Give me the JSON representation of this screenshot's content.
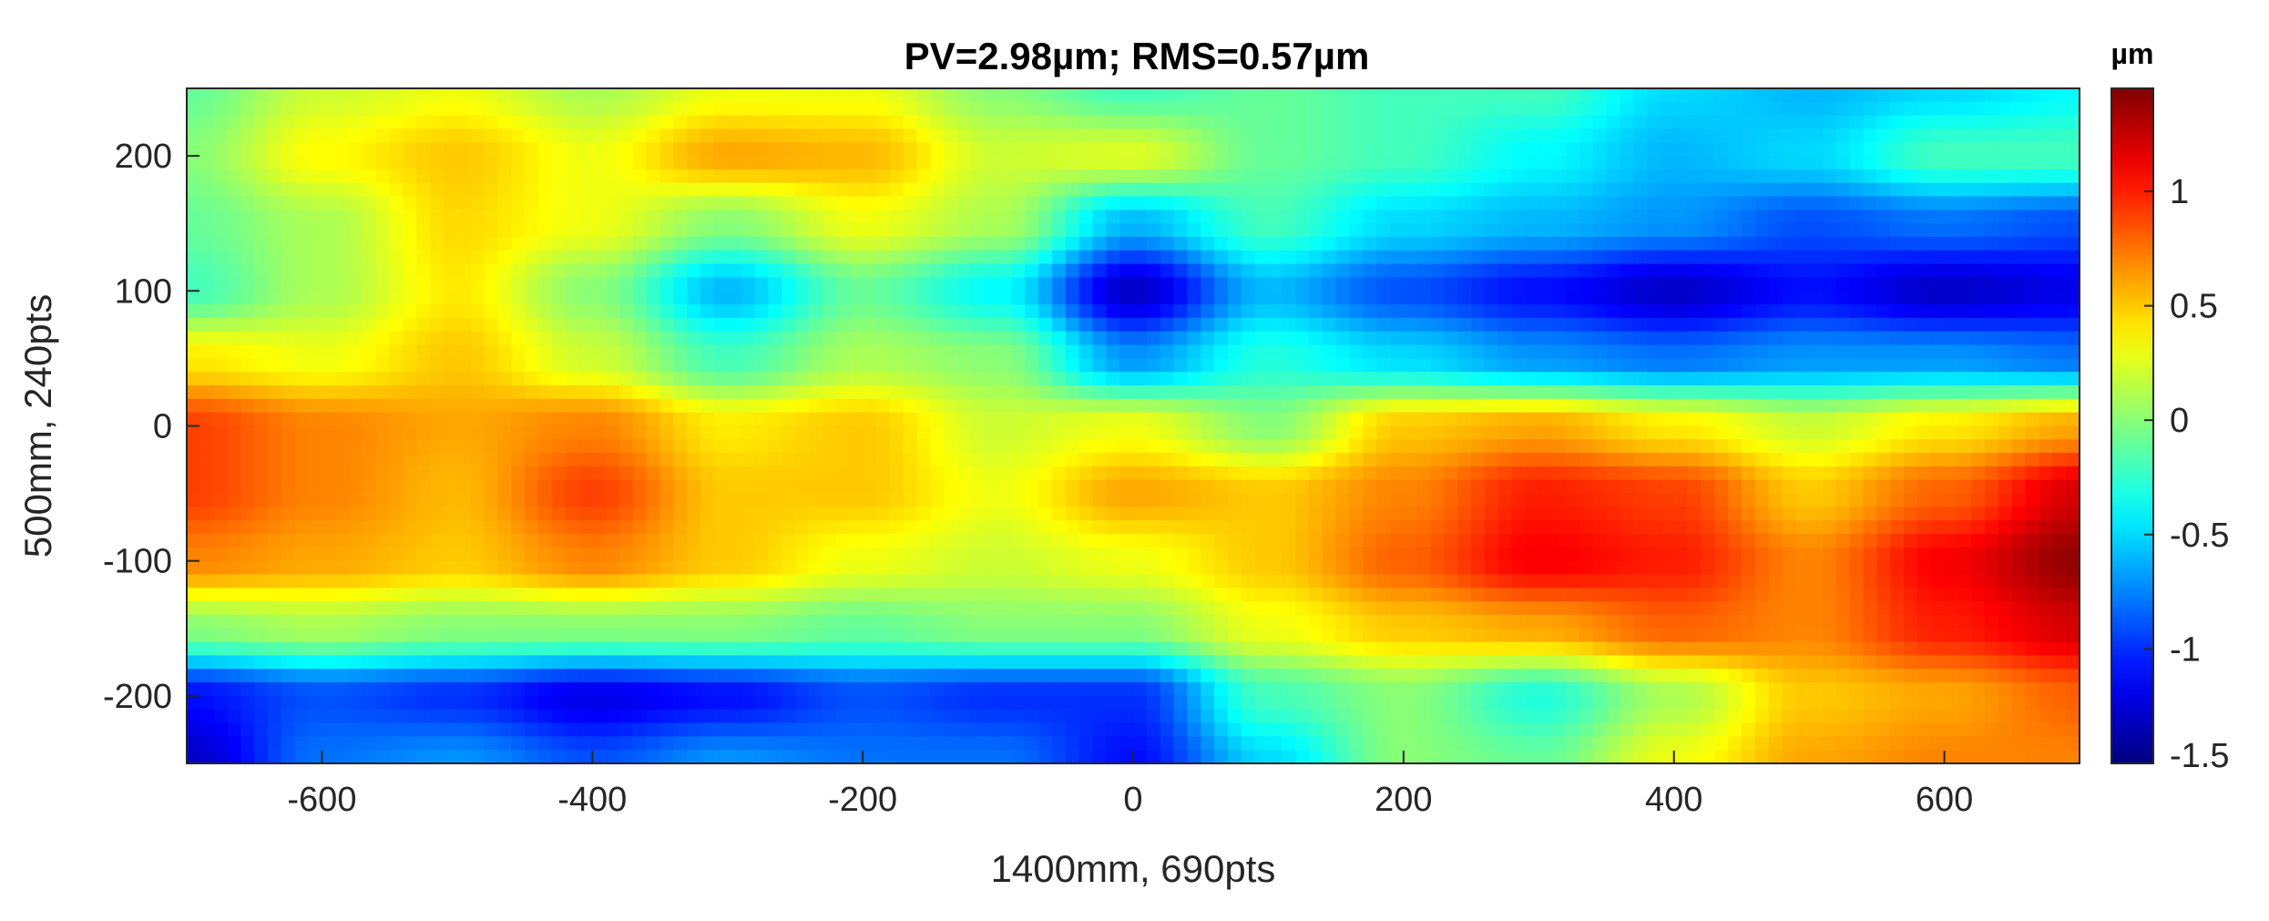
{
  "chart_data": {
    "type": "heatmap",
    "title": "PV=2.98µm; RMS=0.57µm",
    "xlabel": "1400mm, 690pts",
    "ylabel": "500mm, 240pts",
    "xlim": [
      -700,
      700
    ],
    "ylim": [
      -250,
      250
    ],
    "x_ticks": [
      -600,
      -400,
      -200,
      0,
      200,
      400,
      600
    ],
    "y_ticks": [
      -200,
      -100,
      0,
      100,
      200
    ],
    "colorbar": {
      "label": "µm",
      "colormap": "jet",
      "clim": [
        -1.5,
        1.45
      ],
      "ticks": [
        1,
        0.5,
        0,
        -0.5,
        -1,
        -1.5
      ],
      "tick_labels": [
        "1",
        "0.5",
        "0",
        "-0.5",
        "-1",
        "-1.5"
      ]
    },
    "grid_note": "surface deviation map sampled every 100mm in x (columns) and 50mm in y (rows, top to bottom)",
    "x": [
      -700,
      -600,
      -500,
      -400,
      -300,
      -200,
      -100,
      0,
      100,
      200,
      300,
      400,
      500,
      600,
      700
    ],
    "y": [
      250,
      200,
      150,
      100,
      50,
      0,
      -50,
      -100,
      -150,
      -200,
      -250
    ],
    "z": [
      [
        -0.1,
        0.2,
        0.3,
        0.1,
        0.3,
        0.3,
        0.0,
        -0.2,
        -0.1,
        -0.2,
        -0.2,
        -0.5,
        -0.6,
        -0.5,
        -0.4
      ],
      [
        0.0,
        0.35,
        0.5,
        0.3,
        0.6,
        0.55,
        0.2,
        0.25,
        -0.1,
        -0.2,
        -0.4,
        -0.6,
        -0.5,
        -0.2,
        -0.2
      ],
      [
        -0.1,
        0.1,
        0.45,
        0.3,
        0.0,
        0.3,
        0.1,
        -0.6,
        -0.2,
        -0.5,
        -0.6,
        -0.7,
        -0.9,
        -0.8,
        -0.9
      ],
      [
        -0.2,
        0.1,
        0.4,
        0.0,
        -0.6,
        -0.1,
        -0.4,
        -1.3,
        -0.6,
        -0.9,
        -1.1,
        -1.3,
        -1.1,
        -1.3,
        -1.2
      ],
      [
        0.4,
        0.3,
        0.5,
        0.2,
        -0.2,
        0.1,
        0.0,
        -0.7,
        -0.3,
        -0.5,
        -0.7,
        -0.8,
        -0.7,
        -0.7,
        -0.8
      ],
      [
        0.9,
        0.7,
        0.6,
        0.7,
        0.4,
        0.5,
        0.2,
        0.3,
        0.0,
        0.5,
        0.6,
        0.4,
        0.2,
        0.4,
        0.6
      ],
      [
        0.9,
        0.7,
        0.55,
        0.9,
        0.5,
        0.5,
        0.3,
        0.6,
        0.5,
        0.7,
        1.0,
        0.9,
        0.5,
        0.8,
        1.2
      ],
      [
        0.7,
        0.6,
        0.5,
        0.7,
        0.5,
        0.3,
        0.2,
        0.3,
        0.5,
        0.8,
        1.1,
        1.0,
        0.7,
        1.1,
        1.4
      ],
      [
        0.0,
        0.1,
        0.0,
        0.0,
        0.0,
        -0.1,
        0.0,
        0.0,
        0.3,
        0.5,
        0.6,
        0.8,
        0.7,
        1.0,
        1.2
      ],
      [
        -1.1,
        -0.9,
        -1.0,
        -1.2,
        -1.1,
        -0.9,
        -1.0,
        -1.0,
        -0.2,
        0.0,
        -0.3,
        0.1,
        0.5,
        0.6,
        0.8
      ],
      [
        -1.3,
        -0.8,
        -0.7,
        -0.9,
        -0.7,
        -0.8,
        -0.8,
        -1.1,
        -0.5,
        0.0,
        -0.1,
        0.3,
        0.6,
        0.7,
        0.7
      ]
    ]
  }
}
